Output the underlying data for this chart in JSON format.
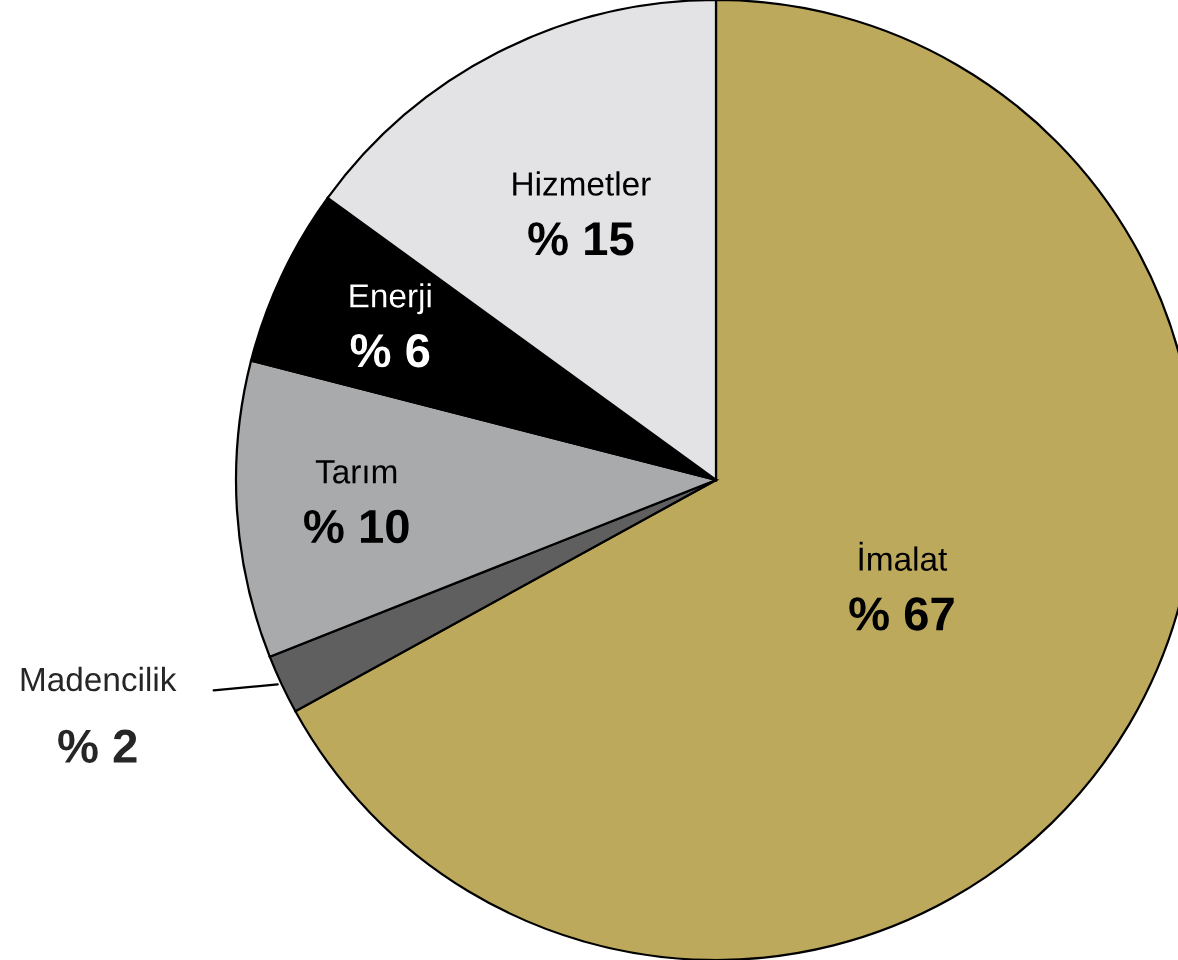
{
  "chart_data": {
    "type": "pie",
    "categories": [
      "İmalat",
      "Madencilik",
      "Tarım",
      "Enerji",
      "Hizmetler"
    ],
    "values": [
      67,
      2,
      10,
      6,
      15
    ],
    "value_labels": [
      "% 67",
      "% 2",
      "% 10",
      "% 6",
      "% 15"
    ],
    "colors": [
      "#bca95c",
      "#5f5f5f",
      "#a9aaac",
      "#000000",
      "#e3e3e5"
    ]
  }
}
